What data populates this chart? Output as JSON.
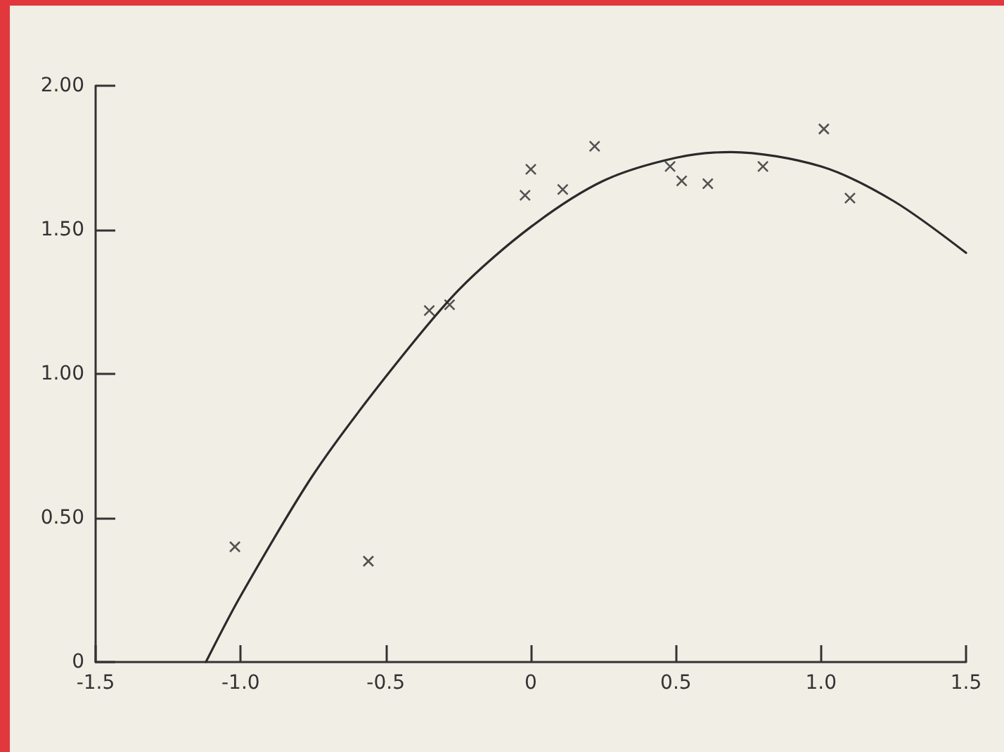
{
  "chart_data": {
    "type": "scatter",
    "series": [
      {
        "color": "#2a2a2a",
        "marker": "cross",
        "x": [
          -1.02,
          -0.56,
          -0.35,
          -0.28,
          -0.02,
          0.0,
          0.11,
          0.22,
          0.48,
          0.52,
          0.61,
          0.8,
          1.01,
          1.1
        ],
        "values": [
          0.4,
          0.35,
          1.22,
          1.24,
          1.62,
          1.71,
          1.64,
          1.79,
          1.72,
          1.67,
          1.66,
          1.72,
          1.85,
          1.61
        ]
      },
      {
        "type": "line",
        "color": "#2a2a2a",
        "marker": "none",
        "line_style": "solid",
        "x": [
          -1.12,
          -1.0,
          -0.75,
          -0.5,
          -0.25,
          0.0,
          0.25,
          0.5,
          0.69,
          1.0,
          1.25,
          1.5
        ],
        "values": [
          0,
          0.23,
          0.65,
          0.99,
          1.29,
          1.51,
          1.67,
          1.75,
          1.77,
          1.72,
          1.6,
          1.42
        ]
      }
    ],
    "xlim": [
      -1.5,
      1.5
    ],
    "xticks": [
      -1.5,
      {
        "value": -1,
        "label": "-1.0"
      },
      -0.5,
      0,
      0.5,
      {
        "value": 1,
        "label": "1.0"
      },
      1.5
    ],
    "ylim": [
      0,
      2
    ],
    "yticks": [
      0,
      {
        "value": 0.5,
        "label": "0.50"
      },
      {
        "value": 1,
        "label": "1.00"
      },
      {
        "value": 1.5,
        "label": "1.50"
      },
      {
        "value": 2,
        "label": "2.00"
      }
    ],
    "grid": false
  }
}
